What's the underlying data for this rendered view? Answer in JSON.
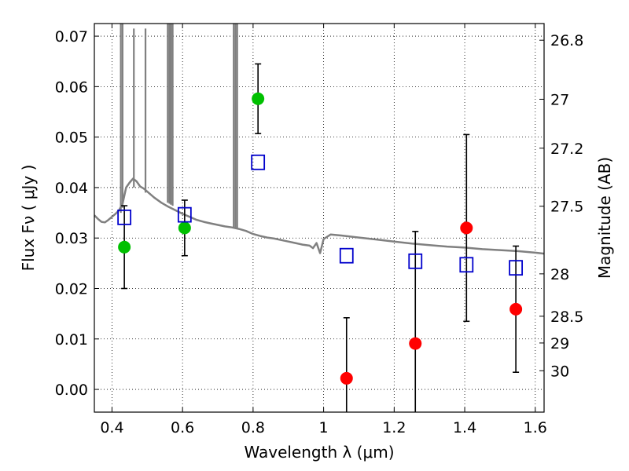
{
  "chart_data": {
    "type": "scatter",
    "xlabel": "Wavelength  λ (μm)",
    "ylabel": "Flux  Fν  ( μJy )",
    "ylabel_right": "Magnitude (AB)",
    "xlim": [
      0.35,
      1.625
    ],
    "ylim": [
      -0.0045,
      0.0725
    ],
    "grid": true,
    "x_ticks": [
      {
        "value": 0.4,
        "label": "0.4"
      },
      {
        "value": 0.6,
        "label": "0.6"
      },
      {
        "value": 0.8,
        "label": "0.8"
      },
      {
        "value": 1.0,
        "label": "1"
      },
      {
        "value": 1.2,
        "label": "1.2"
      },
      {
        "value": 1.4,
        "label": "1.4"
      },
      {
        "value": 1.6,
        "label": "1.6"
      }
    ],
    "y_ticks": [
      {
        "value": 0.0,
        "label": "0.00"
      },
      {
        "value": 0.01,
        "label": "0.01"
      },
      {
        "value": 0.02,
        "label": "0.02"
      },
      {
        "value": 0.03,
        "label": "0.03"
      },
      {
        "value": 0.04,
        "label": "0.04"
      },
      {
        "value": 0.05,
        "label": "0.05"
      },
      {
        "value": 0.06,
        "label": "0.06"
      },
      {
        "value": 0.07,
        "label": "0.07"
      }
    ],
    "right_ticks": [
      {
        "flux": 0.0692,
        "label": "26.8"
      },
      {
        "flux": 0.0575,
        "label": "27"
      },
      {
        "flux": 0.0478,
        "label": "27.2"
      },
      {
        "flux": 0.0363,
        "label": "27.5"
      },
      {
        "flux": 0.0229,
        "label": "28"
      },
      {
        "flux": 0.0145,
        "label": "28.5"
      },
      {
        "flux": 0.0092,
        "label": "29"
      },
      {
        "flux": 0.0037,
        "label": "30"
      }
    ],
    "series": [
      {
        "marker": "circle",
        "color": "#00c000",
        "points": [
          {
            "x": 0.435,
            "y": 0.0282,
            "err": 0.0082
          },
          {
            "x": 0.606,
            "y": 0.032,
            "err": 0.0055
          },
          {
            "x": 0.814,
            "y": 0.0576,
            "err": 0.0069
          }
        ]
      },
      {
        "marker": "circle",
        "color": "#ff0000",
        "points": [
          {
            "x": 1.065,
            "y": 0.0022,
            "err": 0.012
          },
          {
            "x": 1.26,
            "y": 0.0091,
            "err": 0.0222
          },
          {
            "x": 1.405,
            "y": 0.032,
            "err": 0.0185
          },
          {
            "x": 1.545,
            "y": 0.0159,
            "err": 0.0125
          }
        ]
      },
      {
        "marker": "open-square",
        "color": "#0000cc",
        "points": [
          {
            "x": 0.435,
            "y": 0.0341
          },
          {
            "x": 0.606,
            "y": 0.0346
          },
          {
            "x": 0.814,
            "y": 0.045
          },
          {
            "x": 1.065,
            "y": 0.0265
          },
          {
            "x": 1.26,
            "y": 0.0254
          },
          {
            "x": 1.405,
            "y": 0.0247
          },
          {
            "x": 1.545,
            "y": 0.0241
          }
        ]
      }
    ],
    "model_spectrum": {
      "color": "#808080",
      "x": [
        0.35,
        0.36,
        0.37,
        0.38,
        0.39,
        0.4,
        0.41,
        0.42,
        0.43,
        0.44,
        0.45,
        0.46,
        0.47,
        0.48,
        0.49,
        0.5,
        0.52,
        0.54,
        0.56,
        0.58,
        0.6,
        0.62,
        0.64,
        0.66,
        0.68,
        0.7,
        0.72,
        0.74,
        0.76,
        0.78,
        0.8,
        0.82,
        0.84,
        0.86,
        0.88,
        0.9,
        0.92,
        0.94,
        0.96,
        0.97,
        0.98,
        0.99,
        1.0,
        1.02,
        1.05,
        1.1,
        1.15,
        1.2,
        1.25,
        1.3,
        1.35,
        1.4,
        1.45,
        1.5,
        1.55,
        1.6,
        1.625
      ],
      "y": [
        0.0345,
        0.0338,
        0.0332,
        0.0331,
        0.0336,
        0.0342,
        0.0348,
        0.0355,
        0.0368,
        0.04,
        0.041,
        0.0418,
        0.0412,
        0.0402,
        0.0398,
        0.0392,
        0.038,
        0.037,
        0.0362,
        0.0355,
        0.0348,
        0.0342,
        0.0336,
        0.0332,
        0.0329,
        0.0326,
        0.0323,
        0.0321,
        0.0318,
        0.0314,
        0.0308,
        0.0304,
        0.0301,
        0.0299,
        0.0296,
        0.0293,
        0.029,
        0.0287,
        0.0285,
        0.028,
        0.029,
        0.027,
        0.0298,
        0.0307,
        0.0305,
        0.0301,
        0.0297,
        0.0293,
        0.0289,
        0.0286,
        0.0283,
        0.0281,
        0.0278,
        0.0276,
        0.0274,
        0.0271,
        0.0269
      ]
    },
    "spectrum_spikes": [
      {
        "x": 0.425,
        "base": 0.035,
        "top": 0.0725
      },
      {
        "x": 0.43,
        "base": 0.036,
        "top": 0.0725
      },
      {
        "x": 0.462,
        "base": 0.04,
        "top": 0.0715
      },
      {
        "x": 0.495,
        "base": 0.039,
        "top": 0.0715
      },
      {
        "x": 0.558,
        "base": 0.037,
        "top": 0.0725
      },
      {
        "x": 0.563,
        "base": 0.0368,
        "top": 0.0725
      },
      {
        "x": 0.567,
        "base": 0.0366,
        "top": 0.0725
      },
      {
        "x": 0.572,
        "base": 0.0364,
        "top": 0.0725
      },
      {
        "x": 0.745,
        "base": 0.0322,
        "top": 0.0725
      },
      {
        "x": 0.75,
        "base": 0.0321,
        "top": 0.0725
      },
      {
        "x": 0.755,
        "base": 0.032,
        "top": 0.0725
      }
    ]
  }
}
